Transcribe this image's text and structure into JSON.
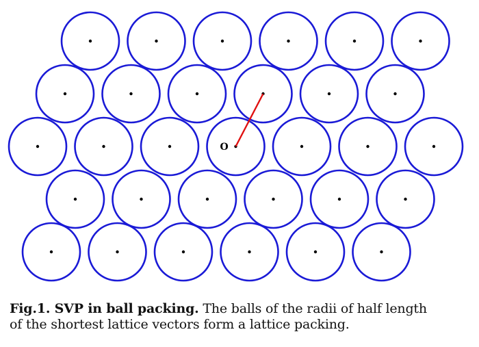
{
  "diagram": {
    "ball_color": "#1a1ad6",
    "center_dot_color": "#000000",
    "vector_color": "#e01010",
    "origin_label": "O",
    "rows": [
      {
        "count": 6
      },
      {
        "count": 6
      },
      {
        "count": 7
      },
      {
        "count": 6
      },
      {
        "count": 6
      }
    ],
    "origin": {
      "row": 2,
      "col": 3
    },
    "vector_end": {
      "row": 1,
      "col": 3
    }
  },
  "caption": {
    "lead": "Fig.1.  SVP in ball packing.",
    "text": " The balls of the radii of half length",
    "line2": "of the shortest lattice vectors form a lattice packing."
  }
}
